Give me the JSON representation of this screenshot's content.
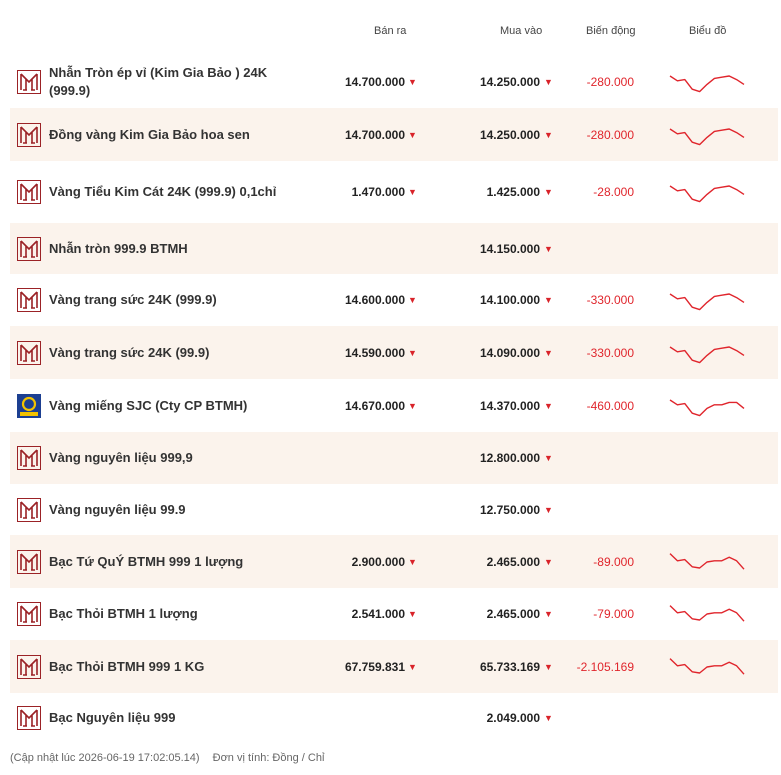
{
  "header": {
    "sell_label": "Bán ra",
    "buy_label": "Mua vào",
    "change_label": "Biến động",
    "chart_label": "Biểu đồ"
  },
  "colors": {
    "accent": "#9b2226",
    "down": "#e0252c",
    "alt_row": "#fbf3ec",
    "sjc_blue": "#1c3f91",
    "sjc_gold": "#f2c200"
  },
  "rows": [
    {
      "logo": "btmh-logo-icon",
      "name": "Nhẫn Tròn ép vỉ (Kim Gia Bảo ) 24K (999.9)",
      "sell": "14.700.000",
      "buy": "14.250.000",
      "change": "-280.000",
      "trend": [
        0.25,
        0.45,
        0.4,
        0.8,
        0.9,
        0.6,
        0.35,
        0.3,
        0.25,
        0.4,
        0.6
      ],
      "alt": false
    },
    {
      "logo": "btmh-logo-icon",
      "name": "Đồng vàng Kim Gia Bảo hoa sen",
      "sell": "14.700.000",
      "buy": "14.250.000",
      "change": "-280.000",
      "trend": [
        0.25,
        0.45,
        0.4,
        0.8,
        0.9,
        0.6,
        0.35,
        0.3,
        0.25,
        0.4,
        0.6
      ],
      "alt": true
    },
    {
      "logo": "btmh-logo-icon",
      "name": "Vàng Tiểu Kim Cát 24K (999.9) 0,1chỉ",
      "sell": "1.470.000",
      "buy": "1.425.000",
      "change": "-28.000",
      "trend": [
        0.25,
        0.45,
        0.4,
        0.8,
        0.9,
        0.6,
        0.35,
        0.3,
        0.25,
        0.4,
        0.6
      ],
      "alt": false
    },
    {
      "logo": "btmh-logo-icon",
      "name": "Nhẫn tròn 999.9 BTMH",
      "sell": "",
      "buy": "14.150.000",
      "change": "",
      "trend": [],
      "alt": true
    },
    {
      "logo": "btmh-logo-icon",
      "name": "Vàng trang sức 24K (999.9)",
      "sell": "14.600.000",
      "buy": "14.100.000",
      "change": "-330.000",
      "trend": [
        0.25,
        0.45,
        0.4,
        0.8,
        0.9,
        0.6,
        0.35,
        0.3,
        0.25,
        0.4,
        0.6
      ],
      "alt": false
    },
    {
      "logo": "btmh-logo-icon",
      "name": "Vàng trang sức 24K (99.9)",
      "sell": "14.590.000",
      "buy": "14.090.000",
      "change": "-330.000",
      "trend": [
        0.25,
        0.45,
        0.4,
        0.8,
        0.9,
        0.6,
        0.35,
        0.3,
        0.25,
        0.4,
        0.6
      ],
      "alt": true
    },
    {
      "logo": "sjc-logo-icon",
      "name": "Vàng miếng SJC (Cty CP BTMH)",
      "sell": "14.670.000",
      "buy": "14.370.000",
      "change": "-460.000",
      "trend": [
        0.25,
        0.45,
        0.4,
        0.8,
        0.9,
        0.6,
        0.45,
        0.45,
        0.35,
        0.35,
        0.6
      ],
      "alt": false
    },
    {
      "logo": "btmh-logo-icon",
      "name": "Vàng nguyên liệu 999,9",
      "sell": "",
      "buy": "12.800.000",
      "change": "",
      "trend": [],
      "alt": true
    },
    {
      "logo": "btmh-logo-icon",
      "name": "Vàng nguyên liệu 99.9",
      "sell": "",
      "buy": "12.750.000",
      "change": "",
      "trend": [],
      "alt": false
    },
    {
      "logo": "btmh-logo-icon",
      "name": "Bạc Tứ QuÝ BTMH 999 1 lượng",
      "sell": "2.900.000",
      "buy": "2.465.000",
      "change": "-89.000",
      "trend": [
        0.15,
        0.45,
        0.4,
        0.7,
        0.75,
        0.5,
        0.45,
        0.45,
        0.3,
        0.45,
        0.8
      ],
      "alt": true
    },
    {
      "logo": "btmh-logo-icon",
      "name": "Bạc Thỏi BTMH 1 lượng",
      "sell": "2.541.000",
      "buy": "2.465.000",
      "change": "-79.000",
      "trend": [
        0.15,
        0.45,
        0.4,
        0.7,
        0.75,
        0.5,
        0.45,
        0.45,
        0.3,
        0.45,
        0.8
      ],
      "alt": false
    },
    {
      "logo": "btmh-logo-icon",
      "name": "Bạc Thỏi BTMH 999 1 KG",
      "sell": "67.759.831",
      "buy": "65.733.169",
      "change": "-2.105.169",
      "trend": [
        0.15,
        0.45,
        0.4,
        0.7,
        0.75,
        0.5,
        0.45,
        0.45,
        0.3,
        0.45,
        0.8
      ],
      "alt": true
    },
    {
      "logo": "btmh-logo-icon",
      "name": "Bạc Nguyên liệu 999",
      "sell": "",
      "buy": "2.049.000",
      "change": "",
      "trend": [],
      "alt": false
    }
  ],
  "footer": {
    "updated": "(Cập nhật lúc 2026-06-19 17:02:05.14)",
    "unit": "Đơn vị tính: Đồng / Chỉ"
  },
  "arrow_glyph": "▼"
}
